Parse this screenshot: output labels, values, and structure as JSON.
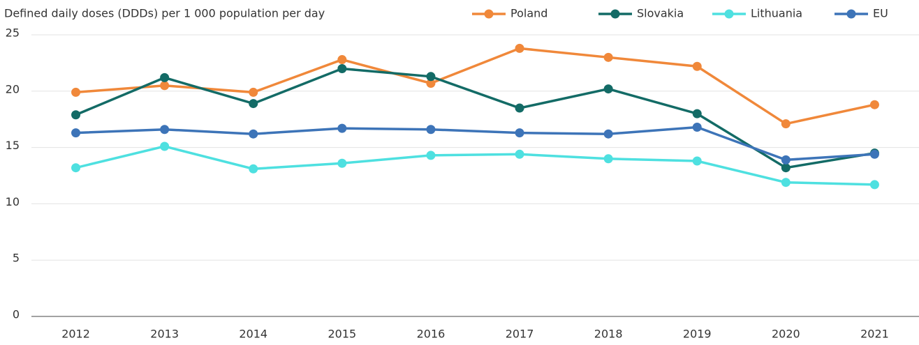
{
  "chart_data": {
    "type": "line",
    "title": "Defined daily doses (DDDs) per 1 000 population per day",
    "categories": [
      "2012",
      "2013",
      "2014",
      "2015",
      "2016",
      "2017",
      "2018",
      "2019",
      "2020",
      "2021"
    ],
    "series": [
      {
        "name": "Poland",
        "color": "#f0883a",
        "values": [
          19.9,
          20.5,
          19.9,
          22.8,
          20.7,
          23.8,
          23.0,
          22.2,
          17.1,
          18.8
        ]
      },
      {
        "name": "Slovakia",
        "color": "#136b66",
        "values": [
          17.9,
          21.2,
          18.9,
          22.0,
          21.3,
          18.5,
          20.2,
          18.0,
          13.2,
          14.5
        ]
      },
      {
        "name": "Lithuania",
        "color": "#4ee0e0",
        "values": [
          13.2,
          15.1,
          13.1,
          13.6,
          14.3,
          14.4,
          14.0,
          13.8,
          11.9,
          11.7
        ]
      },
      {
        "name": "EU",
        "color": "#3d74b8",
        "values": [
          16.3,
          16.6,
          16.2,
          16.7,
          16.6,
          16.3,
          16.2,
          16.8,
          13.9,
          14.4
        ]
      }
    ],
    "ylim": [
      0,
      25
    ],
    "yticks": [
      0,
      5,
      10,
      15,
      20,
      25
    ],
    "grid": true,
    "legend": "top-right"
  }
}
